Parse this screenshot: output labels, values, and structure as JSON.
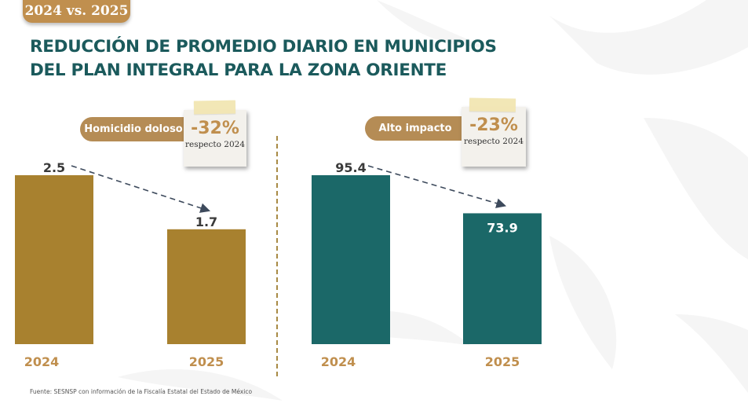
{
  "header": {
    "comparison_tab": "2024 vs. 2025",
    "title_line1": "REDUCCIÓN DE PROMEDIO DIARIO EN MUNICIPIOS",
    "title_line2": "DEL PLAN INTEGRAL PARA LA ZONA ORIENTE"
  },
  "source": "Fuente: SESNSP con información de la Fiscalía Estatal del Estado de México",
  "colors": {
    "gold": "#a8812f",
    "teal": "#1b6868",
    "accent": "#c08f4e",
    "title": "#1b5a5c"
  },
  "chart_data": [
    {
      "type": "bar",
      "title": "Homicidio doloso",
      "change_label": "-32%",
      "change_note": "respecto 2024",
      "categories": [
        "2024",
        "2025"
      ],
      "values": [
        2.5,
        1.7
      ],
      "value_labels": [
        "2.5",
        "1.7"
      ],
      "color": "#a8812f",
      "xlabel": "",
      "ylabel": "",
      "ylim": [
        0,
        2.5
      ],
      "grid": false
    },
    {
      "type": "bar",
      "title": "Alto impacto",
      "change_label": "-23%",
      "change_note": "respecto 2024",
      "categories": [
        "2024",
        "2025"
      ],
      "values": [
        95.4,
        73.9
      ],
      "value_labels": [
        "95.4",
        "73.9"
      ],
      "color": "#1b6868",
      "xlabel": "",
      "ylabel": "",
      "ylim": [
        0,
        95.4
      ],
      "grid": false
    }
  ]
}
